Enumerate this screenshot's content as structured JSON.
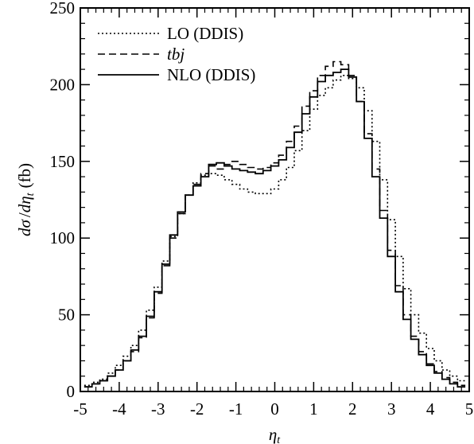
{
  "chart_data": {
    "type": "line",
    "title": "",
    "xlabel": "η_t",
    "ylabel": "dσ/dη_t (fb)",
    "xlim": [
      -5,
      5
    ],
    "ylim": [
      0,
      250
    ],
    "grid": false,
    "legend_position": "top-left",
    "x_ticks": [
      "-5",
      "-4",
      "-3",
      "-2",
      "-1",
      "0",
      "1",
      "2",
      "3",
      "4",
      "5"
    ],
    "y_ticks": [
      "0",
      "50",
      "100",
      "150",
      "200",
      "250"
    ],
    "x": [
      -4.8,
      -4.6,
      -4.4,
      -4.2,
      -4.0,
      -3.8,
      -3.6,
      -3.4,
      -3.2,
      -3.0,
      -2.8,
      -2.6,
      -2.4,
      -2.2,
      -2.0,
      -1.8,
      -1.6,
      -1.4,
      -1.2,
      -1.0,
      -0.8,
      -0.6,
      -0.4,
      -0.2,
      0.0,
      0.2,
      0.4,
      0.6,
      0.8,
      1.0,
      1.2,
      1.4,
      1.6,
      1.8,
      2.0,
      2.2,
      2.4,
      2.6,
      2.8,
      3.0,
      3.2,
      3.4,
      3.6,
      3.8,
      4.0,
      4.2,
      4.4,
      4.6,
      4.8
    ],
    "series": [
      {
        "name": "LO (DDIS)",
        "style": "dotted",
        "values": [
          4,
          6,
          8,
          12,
          17,
          23,
          30,
          40,
          53,
          68,
          85,
          101,
          116,
          128,
          136,
          141,
          142,
          141,
          138,
          135,
          132,
          130,
          129,
          129,
          132,
          138,
          146,
          157,
          170,
          184,
          193,
          198,
          203,
          206,
          204,
          198,
          183,
          163,
          138,
          112,
          88,
          67,
          50,
          38,
          28,
          20,
          14,
          10,
          7
        ]
      },
      {
        "name": "tbj",
        "name_style": "italic",
        "style": "dashed",
        "values": [
          3,
          5,
          7,
          10,
          14,
          20,
          26,
          35,
          48,
          64,
          82,
          100,
          116,
          128,
          135,
          142,
          147,
          145,
          148,
          150,
          148,
          146,
          145,
          146,
          149,
          154,
          163,
          173,
          186,
          196,
          206,
          212,
          215,
          213,
          206,
          189,
          168,
          145,
          118,
          92,
          69,
          50,
          36,
          26,
          18,
          13,
          9,
          6,
          4
        ]
      },
      {
        "name": "NLO (DDIS)",
        "style": "solid",
        "values": [
          3,
          5,
          7,
          10,
          14,
          20,
          27,
          36,
          49,
          65,
          83,
          102,
          117,
          128,
          134,
          140,
          148,
          149,
          147,
          145,
          144,
          143,
          142,
          144,
          147,
          151,
          159,
          169,
          181,
          192,
          202,
          206,
          208,
          210,
          205,
          189,
          165,
          140,
          113,
          88,
          65,
          47,
          34,
          24,
          17,
          12,
          8,
          5,
          3
        ]
      }
    ]
  }
}
